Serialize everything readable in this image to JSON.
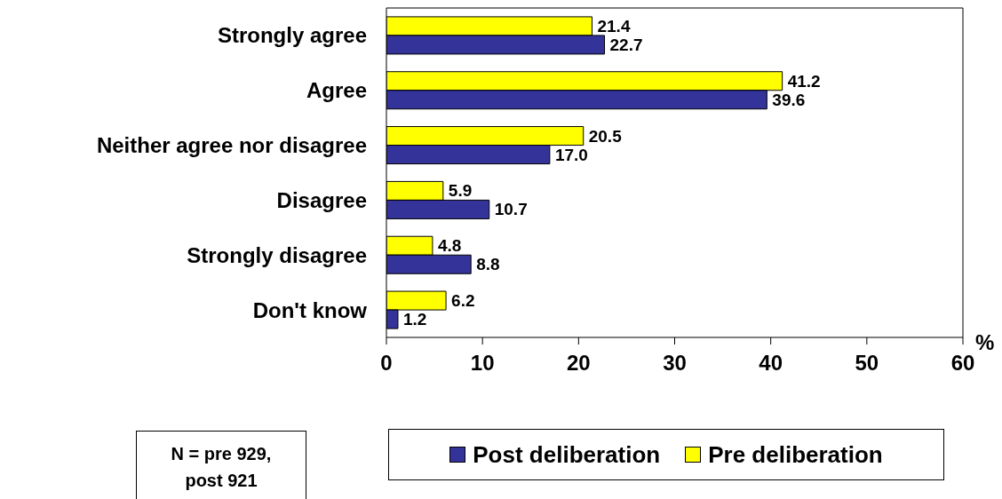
{
  "chart_data": {
    "type": "bar",
    "orientation": "horizontal",
    "categories": [
      "Strongly agree",
      "Agree",
      "Neither agree nor disagree",
      "Disagree",
      "Strongly disagree",
      "Don't know"
    ],
    "series": [
      {
        "name": "Post deliberation",
        "color": "#333399",
        "values": [
          22.7,
          39.6,
          17.0,
          10.7,
          8.8,
          1.2
        ],
        "value_labels": [
          "22.7",
          "39.6",
          "17.0",
          "10.7",
          "8.8",
          "1.2"
        ]
      },
      {
        "name": "Pre deliberation",
        "color": "#ffff00",
        "values": [
          21.4,
          41.2,
          20.5,
          5.9,
          4.8,
          6.2
        ],
        "value_labels": [
          "21.4",
          "41.2",
          "20.5",
          "5.9",
          "4.8",
          "6.2"
        ]
      }
    ],
    "xlabel": "%",
    "xlim": [
      0,
      60
    ],
    "xticks": [
      0,
      10,
      20,
      30,
      40,
      50,
      60
    ],
    "legend": "bottom",
    "annotations": [
      "N = pre 929, post 921"
    ]
  }
}
